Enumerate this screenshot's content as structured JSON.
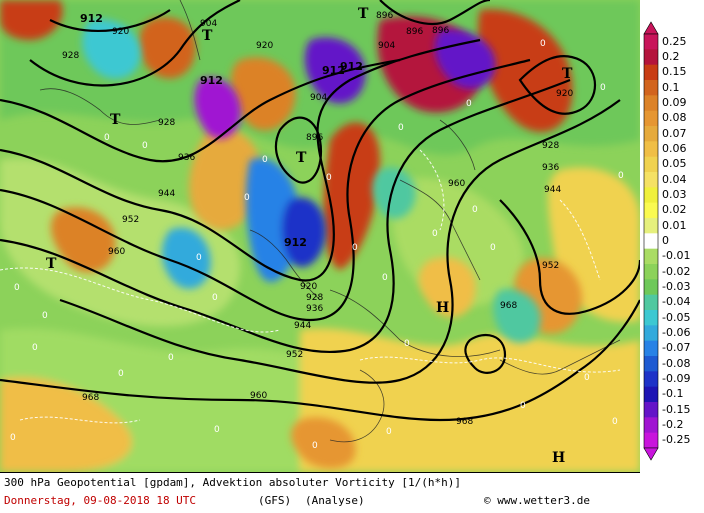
{
  "map": {
    "pressure_labels": [
      "T",
      "T",
      "T",
      "T",
      "T",
      "T",
      "H",
      "H"
    ],
    "contour_labels": [
      "912",
      "920",
      "928",
      "936",
      "944",
      "952",
      "960",
      "968",
      "904",
      "896",
      "912",
      "912",
      "912",
      "920",
      "928",
      "936",
      "944",
      "952",
      "960",
      "968",
      "904",
      "896",
      "920",
      "928",
      "936",
      "944",
      "952",
      "960",
      "968",
      "904",
      "896",
      "896",
      "920",
      "912",
      "928"
    ],
    "zero_marks": [
      "0",
      "0",
      "0",
      "0",
      "0",
      "0",
      "0",
      "0",
      "0",
      "0",
      "0",
      "0",
      "0",
      "0",
      "0",
      "0",
      "0",
      "0",
      "0",
      "0",
      "0",
      "0",
      "0",
      "0",
      "0",
      "0",
      "0",
      "0",
      "0",
      "0"
    ]
  },
  "colorbar": {
    "labels": [
      "0.25",
      "0.2",
      "0.15",
      "0.1",
      "0.09",
      "0.08",
      "0.07",
      "0.06",
      "0.05",
      "0.04",
      "0.03",
      "0.02",
      "0.01",
      "0",
      "-0.01",
      "-0.02",
      "-0.03",
      "-0.04",
      "-0.05",
      "-0.06",
      "-0.07",
      "-0.08",
      "-0.09",
      "-0.1",
      "-0.15",
      "-0.2",
      "-0.25"
    ],
    "colors": [
      "#c8145a",
      "#b4143c",
      "#c83c14",
      "#d2641e",
      "#dc8228",
      "#e69632",
      "#e6aa3c",
      "#f0be46",
      "#f0d250",
      "#f5e164",
      "#f0f03c",
      "#fafa50",
      "#e6f07d",
      "#ffffff",
      "#aadc64",
      "#8cd25a",
      "#6ec85a",
      "#50c8a0",
      "#3cc8d2",
      "#32aadc",
      "#2882e6",
      "#1e5ad2",
      "#1e32c8",
      "#1e14b4",
      "#6414c8",
      "#a014d2",
      "#c814dc"
    ]
  },
  "footer": {
    "title": "300 hPa Geopotential [gpdam], Advektion absoluter Vorticity [1/(h*h)]",
    "date": "Donnerstag, 09-08-2018  18 UTC",
    "model": "(GFS)",
    "analysis": "(Analyse)",
    "copyright": "© www.wetter3.de"
  }
}
